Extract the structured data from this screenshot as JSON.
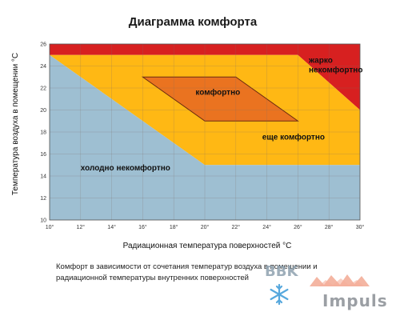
{
  "chart_data": {
    "type": "area",
    "title": "Диаграмма комфорта",
    "xlabel": "Радиационная температура поверхностей °С",
    "ylabel": "Температура воздуха в помещении °С",
    "xlim": [
      10,
      30
    ],
    "ylim": [
      10,
      26
    ],
    "x_ticks": [
      "10°",
      "12°",
      "14°",
      "16°",
      "18°",
      "20°",
      "22°",
      "24°",
      "26°",
      "28°",
      "30°"
    ],
    "y_ticks": [
      "10",
      "12",
      "14",
      "16",
      "18",
      "20",
      "22",
      "24",
      "26"
    ],
    "grid": true,
    "zones": [
      {
        "name": "жарко некомфортно",
        "color": "#d72020",
        "points": [
          [
            10,
            26
          ],
          [
            30,
            26
          ],
          [
            30,
            20
          ],
          [
            26,
            25
          ],
          [
            10,
            25
          ]
        ]
      },
      {
        "name": "еще комфортно",
        "color": "#ffb814",
        "points": [
          [
            10,
            25
          ],
          [
            26,
            25
          ],
          [
            30,
            20
          ],
          [
            30,
            15
          ],
          [
            20,
            15
          ]
        ]
      },
      {
        "name": "комфортно",
        "color": "#ea7320",
        "points": [
          [
            16,
            23
          ],
          [
            22,
            23
          ],
          [
            26,
            19
          ],
          [
            20,
            19
          ]
        ]
      },
      {
        "name": "холодно некомфортно",
        "color": "#9ebfd2",
        "points": [
          [
            10,
            10
          ],
          [
            30,
            10
          ],
          [
            30,
            15
          ],
          [
            20,
            15
          ],
          [
            10,
            25
          ]
        ]
      }
    ],
    "labels": [
      {
        "text_lines": [
          "жарко",
          "некомфортно"
        ],
        "at": [
          26.7,
          24.3
        ]
      },
      {
        "text_lines": [
          "комфортно"
        ],
        "at": [
          19.4,
          21.4
        ]
      },
      {
        "text_lines": [
          "еще комфортно"
        ],
        "at": [
          23.7,
          17.3
        ]
      },
      {
        "text_lines": [
          "холодно некомфортно"
        ],
        "at": [
          12.0,
          14.5
        ]
      }
    ]
  },
  "caption_lines": [
    "Комфорт в зависимости от сочетания температур воздуха в помещении и",
    "радиационной температуры внутренних поверхностей"
  ],
  "watermark": {
    "brand": "BBK",
    "name": "Impuls",
    "colors": {
      "snow": "#3a9ad8",
      "flame": "#e8623a"
    }
  }
}
